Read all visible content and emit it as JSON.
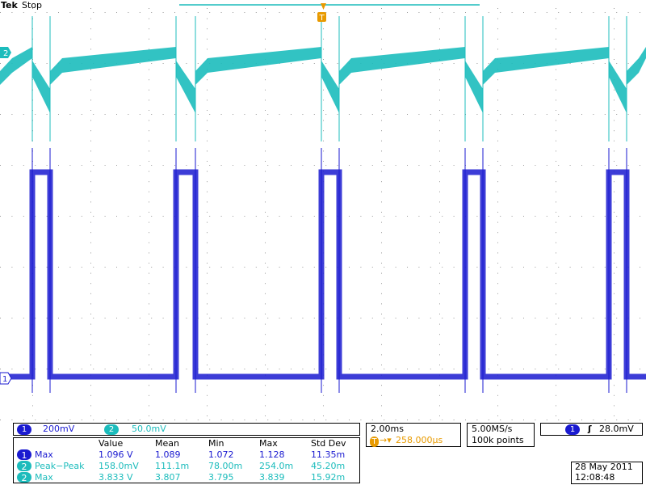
{
  "header": {
    "brand": "Tek",
    "status": "Stop",
    "trigger_marker": "T"
  },
  "channels": {
    "ch1": {
      "label": "1",
      "scale": "200mV",
      "color": "#1a1ad0"
    },
    "ch2": {
      "label": "2",
      "scale": "50.0mV",
      "color": "#1cbcbc"
    }
  },
  "timebase": {
    "scale": "2.00ms",
    "trigger_position": "258.000µs",
    "sample_rate": "5.00MS/s",
    "record_length": "100k points"
  },
  "trigger": {
    "source": "1",
    "slope_symbol": "ʃ",
    "level": "28.0mV"
  },
  "measurements": {
    "headers": [
      "Value",
      "Mean",
      "Min",
      "Max",
      "Std Dev"
    ],
    "rows": [
      {
        "channel": "1",
        "name": "Max",
        "value": "1.096 V",
        "mean": "1.089",
        "min": "1.072",
        "max": "1.128",
        "std_dev": "11.35m"
      },
      {
        "channel": "2",
        "name": "Peak−Peak",
        "value": "158.0mV",
        "mean": "111.1m",
        "min": "78.00m",
        "max": "254.0m",
        "std_dev": "45.20m"
      },
      {
        "channel": "2",
        "name": "Max",
        "value": "3.833 V",
        "mean": "3.807",
        "min": "3.795",
        "max": "3.839",
        "std_dev": "15.92m"
      }
    ]
  },
  "datetime": {
    "date": "28 May 2011",
    "time": "12:08:48"
  },
  "colors": {
    "ch1": "#1a1ad0",
    "ch2": "#1cbcbc",
    "trigger": "#e89a00",
    "grid": "#9a9a9a"
  }
}
